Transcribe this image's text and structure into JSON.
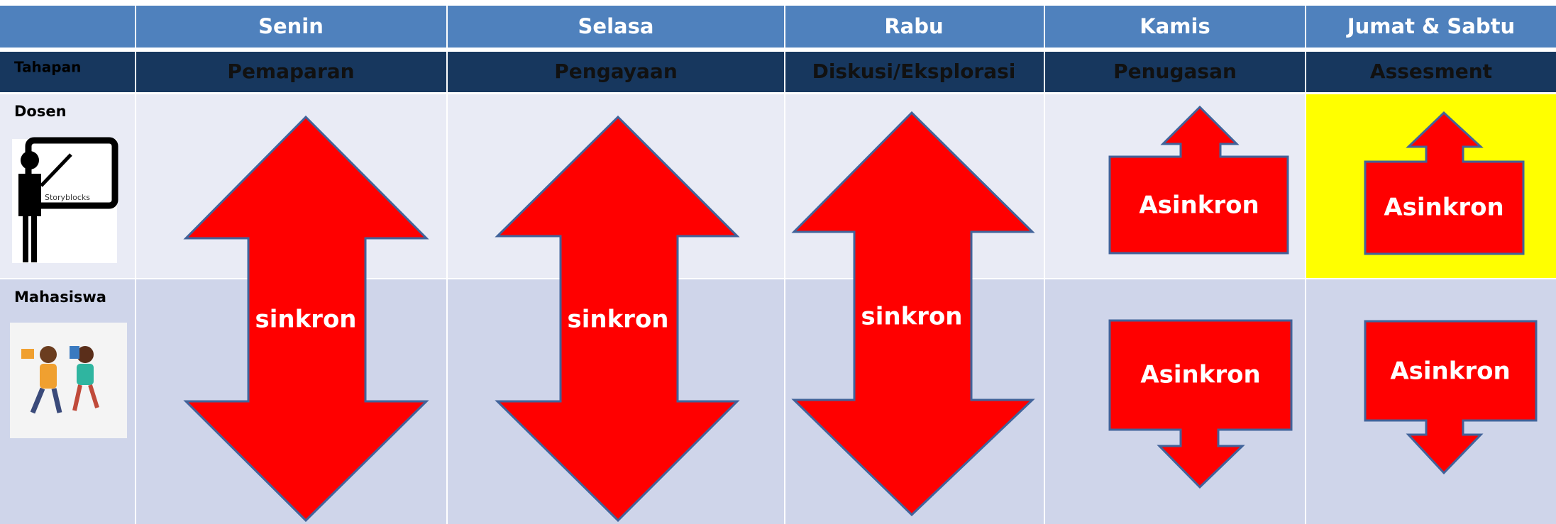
{
  "header": {
    "days": [
      "Senin",
      "Selasa",
      "Rabu",
      "Kamis",
      "Jumat & Sabtu"
    ]
  },
  "stage_row": {
    "label": "Tahapan",
    "stages": [
      "Pemaparan",
      "Pengayaan",
      "Diskusi/Eksplorasi",
      "Penugasan",
      "Assesment"
    ]
  },
  "rows": [
    {
      "label": "Dosen",
      "icon_text": "Storyblocks"
    },
    {
      "label": "Mahasiswa"
    }
  ],
  "arrows": [
    {
      "label": "sinkron"
    },
    {
      "label": "sinkron"
    },
    {
      "label": "sinkron"
    },
    {
      "label": "Asinkron"
    },
    {
      "label": "Asinkron"
    },
    {
      "label": "Asinkron"
    },
    {
      "label": "Asinkron"
    }
  ]
}
